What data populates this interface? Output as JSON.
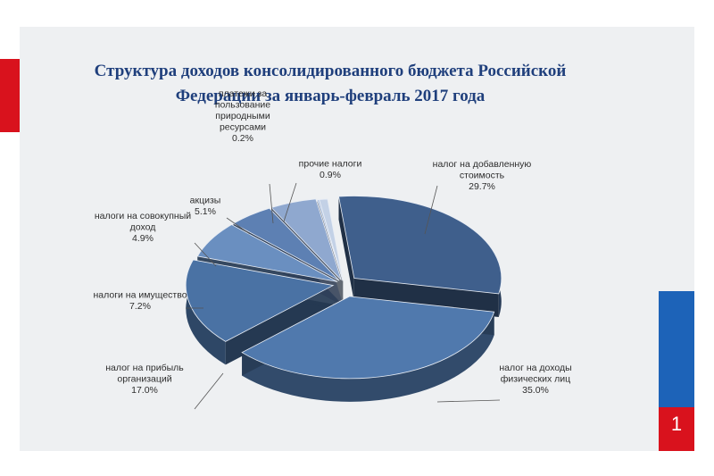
{
  "title_line1": "Структура доходов консолидированного бюджета Российской",
  "title_line2": "Федерации за январь-февраль 2017 года",
  "page_number": "1",
  "chart_data": {
    "type": "pie",
    "style": "3d-exploded",
    "slices": [
      {
        "label_lines": [
          "налог на добавленную",
          "стоимость"
        ],
        "value": 29.7,
        "value_label": "29.7%",
        "color": "#3f5f8c"
      },
      {
        "label_lines": [
          "налог на доходы",
          "физических лиц"
        ],
        "value": 35.0,
        "value_label": "35.0%",
        "color": "#5079ad"
      },
      {
        "label_lines": [
          "налог на прибыль",
          "организаций"
        ],
        "value": 17.0,
        "value_label": "17.0%",
        "color": "#4a72a4"
      },
      {
        "label_lines": [
          "налоги на имущество"
        ],
        "value": 7.2,
        "value_label": "7.2%",
        "color": "#6a8fc0"
      },
      {
        "label_lines": [
          "налоги на совокупный",
          "доход"
        ],
        "value": 4.9,
        "value_label": "4.9%",
        "color": "#5d80b3"
      },
      {
        "label_lines": [
          "акцизы"
        ],
        "value": 5.1,
        "value_label": "5.1%",
        "color": "#8fa8cf"
      },
      {
        "label_lines": [
          "платежи за",
          "пользование",
          "природными",
          "ресурсами"
        ],
        "value": 0.2,
        "value_label": "0.2%",
        "color": "#a9bddc"
      },
      {
        "label_lines": [
          "прочие налоги"
        ],
        "value": 0.9,
        "value_label": "0.9%",
        "color": "#c3d1e6"
      }
    ]
  }
}
